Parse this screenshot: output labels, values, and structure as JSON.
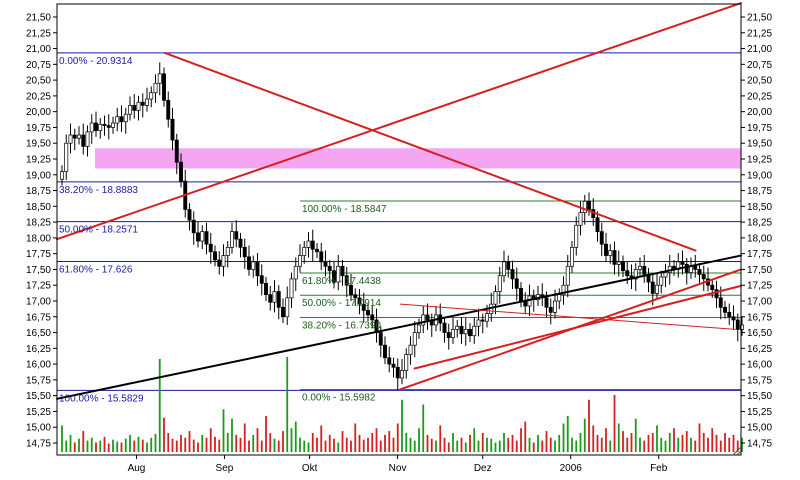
{
  "chart_data": {
    "type": "candlestick",
    "colors": {
      "background": "#ffffff",
      "frame": "#000000",
      "fib_main": "#1a1aa8",
      "fib_secondary": "#2e7d32",
      "trendline_red": "#d42020",
      "trendline_black": "#000000",
      "resistance_zone": "#f4a6f0",
      "volume_up": "#1a9c1a",
      "volume_down": "#d42020"
    },
    "ylim": [
      14.5,
      21.75
    ],
    "y_ticks": [
      "21,50",
      "21,25",
      "21,00",
      "20,75",
      "20,50",
      "20,25",
      "20,00",
      "19,75",
      "19,50",
      "19,25",
      "19,00",
      "18,75",
      "18,50",
      "18,25",
      "18,00",
      "17,75",
      "17,50",
      "17,25",
      "17,00",
      "16,75",
      "16,50",
      "16,25",
      "16,00",
      "15,75",
      "15,50",
      "15,25",
      "15,00",
      "14,75"
    ],
    "x_ticks": [
      {
        "label": "Aug",
        "day": 13
      },
      {
        "label": "Sep",
        "day": 44
      },
      {
        "label": "Okt",
        "day": 74
      },
      {
        "label": "Nov",
        "day": 105
      },
      {
        "label": "Dez",
        "day": 135
      },
      {
        "label": "2006",
        "day": 166
      },
      {
        "label": "Feb",
        "day": 197
      }
    ],
    "day_range": [
      -15,
      226
    ],
    "fib_main": [
      {
        "label": "0.00% - 20.9314",
        "price": 20.9314
      },
      {
        "label": "38.20% - 18.8883",
        "price": 18.8883
      },
      {
        "label": "50.00% - 18.2571",
        "price": 18.2571
      },
      {
        "label": "61.80% - 17.626",
        "price": 17.626
      },
      {
        "label": "100.00% - 15.5829",
        "price": 15.5829
      }
    ],
    "fib_secondary": [
      {
        "label": "100.00% - 18.5847",
        "price": 18.5847
      },
      {
        "label": "61.80% - 17.4438",
        "price": 17.4438
      },
      {
        "label": "50.00% - 17.0914",
        "price": 17.0914
      },
      {
        "label": "38.20% - 16.7390",
        "price": 16.739
      },
      {
        "label": "0.00% - 15.5982",
        "price": 15.5982
      }
    ],
    "resistance_zone": {
      "price_low": 19.1,
      "price_high": 19.42
    },
    "trendlines": [
      {
        "color": "red",
        "width": 2,
        "points": [
          [
            -15,
            17.98
          ],
          [
            226,
            21.72
          ]
        ]
      },
      {
        "color": "red",
        "width": 2,
        "points": [
          [
            23,
            20.93
          ],
          [
            210,
            17.8
          ]
        ]
      },
      {
        "color": "black",
        "width": 2,
        "points": [
          [
            -15,
            15.45
          ],
          [
            226,
            17.72
          ]
        ]
      },
      {
        "color": "red",
        "width": 2,
        "points": [
          [
            106,
            15.6
          ],
          [
            226,
            17.5
          ]
        ]
      },
      {
        "color": "red",
        "width": 2,
        "points": [
          [
            111,
            15.93
          ],
          [
            226,
            17.24
          ]
        ]
      },
      {
        "color": "red",
        "width": 1,
        "points": [
          [
            106,
            16.95
          ],
          [
            224,
            16.55
          ]
        ]
      }
    ],
    "close": [
      19.05,
      19.5,
      19.63,
      19.58,
      19.63,
      19.45,
      19.68,
      19.82,
      19.7,
      19.8,
      19.78,
      19.75,
      19.82,
      19.92,
      19.84,
      19.96,
      20.1,
      20.02,
      20.15,
      20.1,
      20.2,
      20.3,
      20.45,
      20.6,
      20.18,
      19.88,
      19.55,
      19.2,
      18.9,
      18.45,
      18.28,
      18.08,
      17.95,
      18.1,
      17.9,
      17.78,
      17.65,
      17.55,
      17.72,
      17.85,
      18.1,
      17.98,
      17.85,
      17.7,
      17.5,
      17.62,
      17.4,
      17.28,
      17.1,
      16.98,
      17.15,
      16.9,
      16.75,
      17.05,
      17.35,
      17.55,
      17.72,
      17.85,
      17.95,
      17.82,
      17.78,
      17.62,
      17.55,
      17.48,
      17.3,
      17.55,
      17.4,
      17.25,
      17.1,
      17.05,
      16.95,
      16.85,
      16.78,
      16.7,
      16.5,
      16.3,
      16.1,
      16.0,
      15.95,
      15.78,
      15.9,
      16.15,
      16.3,
      16.5,
      16.62,
      16.78,
      16.7,
      16.62,
      16.78,
      16.65,
      16.5,
      16.42,
      16.55,
      16.6,
      16.48,
      16.55,
      16.45,
      16.6,
      16.7,
      16.68,
      16.8,
      16.95,
      17.15,
      17.4,
      17.62,
      17.5,
      17.35,
      17.2,
      17.0,
      16.92,
      17.08,
      17.02,
      17.1,
      17.05,
      16.9,
      16.82,
      17.0,
      17.1,
      17.25,
      17.55,
      17.85,
      18.2,
      18.4,
      18.58,
      18.45,
      18.32,
      18.1,
      17.9,
      17.72,
      17.8,
      17.58,
      17.62,
      17.48,
      17.4,
      17.35,
      17.5,
      17.55,
      17.42,
      17.3,
      17.12,
      17.25,
      17.38,
      17.45,
      17.55,
      17.5,
      17.62,
      17.58,
      17.45,
      17.55,
      17.5,
      17.42,
      17.35,
      17.25,
      17.18,
      17.05,
      16.9,
      16.82,
      16.75,
      16.7,
      16.55,
      16.62
    ],
    "volume": [
      0.28,
      0.12,
      0.18,
      0.1,
      0.14,
      0.22,
      0.12,
      0.15,
      0.1,
      0.12,
      0.16,
      0.09,
      0.13,
      0.11,
      0.1,
      0.14,
      0.18,
      0.12,
      0.16,
      0.13,
      0.1,
      0.15,
      0.19,
      0.98,
      0.36,
      0.2,
      0.14,
      0.12,
      0.18,
      0.15,
      0.22,
      0.13,
      0.1,
      0.18,
      0.15,
      0.25,
      0.16,
      0.13,
      0.45,
      0.2,
      0.35,
      0.18,
      0.15,
      0.3,
      0.12,
      0.18,
      0.25,
      0.12,
      0.38,
      0.2,
      0.14,
      0.12,
      0.22,
      1.0,
      0.25,
      0.32,
      0.15,
      0.12,
      0.1,
      0.2,
      0.15,
      0.28,
      0.12,
      0.18,
      0.14,
      0.1,
      0.22,
      0.15,
      0.12,
      0.3,
      0.18,
      0.13,
      0.15,
      0.2,
      0.25,
      0.12,
      0.18,
      0.22,
      0.15,
      0.3,
      0.55,
      0.2,
      0.15,
      0.12,
      0.25,
      0.5,
      0.18,
      0.14,
      0.12,
      0.28,
      0.15,
      0.1,
      0.2,
      0.12,
      0.15,
      0.1,
      0.18,
      0.25,
      0.12,
      0.2,
      0.15,
      0.14,
      0.1,
      0.12,
      0.2,
      0.15,
      0.18,
      0.12,
      0.25,
      0.32,
      0.15,
      0.1,
      0.18,
      0.12,
      0.22,
      0.15,
      0.12,
      0.18,
      0.3,
      0.38,
      0.15,
      0.12,
      0.2,
      0.35,
      0.55,
      0.28,
      0.18,
      0.15,
      0.25,
      0.12,
      0.6,
      0.3,
      0.22,
      0.15,
      0.2,
      0.35,
      0.15,
      0.12,
      0.18,
      0.2,
      0.28,
      0.15,
      0.12,
      0.2,
      0.25,
      0.15,
      0.18,
      0.22,
      0.15,
      0.12,
      0.3,
      0.2,
      0.15,
      0.25,
      0.18,
      0.12,
      0.2,
      0.15,
      0.18,
      0.12,
      0.15
    ]
  }
}
